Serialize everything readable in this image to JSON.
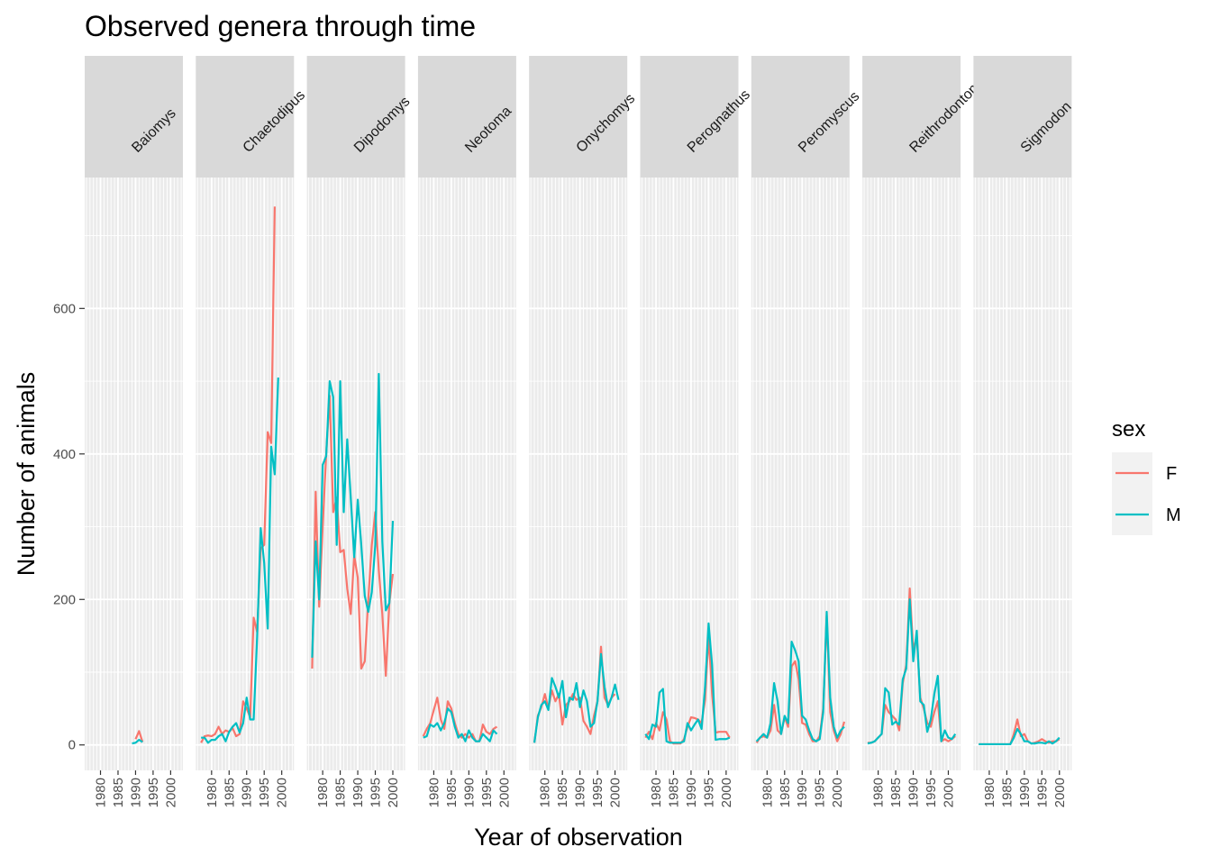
{
  "chart_data": {
    "type": "line",
    "title": "Observed genera through time",
    "xlabel": "Year of observation",
    "ylabel": "Number of animals",
    "ylim": [
      -35,
      780
    ],
    "xlim": [
      1975.5,
      2003.5
    ],
    "yticks": [
      0,
      200,
      400,
      600
    ],
    "xticks": [
      1980,
      1985,
      1990,
      1995,
      2000
    ],
    "grid": true,
    "facet_by": "genus",
    "legend": {
      "title": "sex",
      "placement": "right",
      "entries": [
        {
          "label": "F",
          "color": "#F8766D"
        },
        {
          "label": "M",
          "color": "#00BFC4"
        }
      ]
    },
    "colors": {
      "F": "#F8766D",
      "M": "#00BFC4"
    },
    "x": [
      1977,
      1978,
      1979,
      1980,
      1981,
      1982,
      1983,
      1984,
      1985,
      1986,
      1987,
      1988,
      1989,
      1990,
      1991,
      1992,
      1993,
      1994,
      1995,
      1996,
      1997,
      1998,
      1999,
      2000,
      2001,
      2002
    ],
    "panels": [
      {
        "genus": "Baiomys",
        "series": [
          {
            "name": "F",
            "x": [
              1990,
              1991,
              1992
            ],
            "values": [
              8,
              19,
              4
            ]
          },
          {
            "name": "M",
            "x": [
              1989,
              1990,
              1991,
              1992
            ],
            "values": [
              2,
              3,
              7,
              4
            ]
          }
        ]
      },
      {
        "genus": "Chaetodipus",
        "series": [
          {
            "name": "F",
            "values": [
              3,
              12,
              13,
              12,
              15,
              25,
              15,
              20,
              18,
              23,
              12,
              15,
              60,
              50,
              38,
              175,
              155,
              270,
              275,
              430,
              415,
              740
            ]
          },
          {
            "name": "M",
            "values": [
              10,
              10,
              3,
              7,
              7,
              12,
              15,
              5,
              18,
              25,
              30,
              17,
              30,
              65,
              35,
              35,
              150,
              298,
              250,
              160,
              410,
              372,
              505
            ],
            "x": [
              1977,
              1978,
              1979,
              1980,
              1981,
              1982,
              1983,
              1984,
              1985,
              1986,
              1987,
              1988,
              1989,
              1990,
              1991,
              1992,
              1993,
              1994,
              1995,
              1996,
              1997,
              1998,
              1999
            ]
          }
        ]
      },
      {
        "genus": "Dipodomys",
        "series": [
          {
            "name": "F",
            "values": [
              105,
              348,
              190,
              300,
              400,
              480,
              320,
              340,
              265,
              268,
              215,
              180,
              260,
              230,
              105,
              115,
              200,
              275,
              320,
              240,
              180,
              95,
              195,
              235
            ]
          },
          {
            "name": "M",
            "values": [
              120,
              280,
              200,
              385,
              397,
              500,
              478,
              275,
              500,
              320,
              420,
              340,
              258,
              337,
              275,
              205,
              183,
              210,
              275,
              510,
              280,
              185,
              195,
              308
            ]
          }
        ]
      },
      {
        "genus": "Neotoma",
        "series": [
          {
            "name": "F",
            "values": [
              12,
              22,
              30,
              48,
              65,
              35,
              22,
              60,
              50,
              30,
              15,
              10,
              15,
              10,
              15,
              5,
              5,
              28,
              18,
              15,
              22,
              25
            ]
          },
          {
            "name": "M",
            "values": [
              10,
              12,
              28,
              25,
              30,
              20,
              30,
              50,
              45,
              25,
              10,
              15,
              5,
              20,
              10,
              5,
              5,
              15,
              10,
              5,
              20,
              15
            ]
          }
        ]
      },
      {
        "genus": "Onychomys",
        "series": [
          {
            "name": "F",
            "values": [
              3,
              40,
              52,
              70,
              50,
              75,
              60,
              70,
              28,
              55,
              60,
              70,
              62,
              65,
              33,
              25,
              15,
              40,
              60,
              135,
              65,
              55,
              65,
              70
            ]
          },
          {
            "name": "M",
            "values": [
              3,
              38,
              55,
              60,
              48,
              92,
              80,
              65,
              88,
              38,
              65,
              62,
              85,
              52,
              75,
              60,
              25,
              30,
              60,
              125,
              80,
              52,
              65,
              83,
              62
            ]
          }
        ]
      },
      {
        "genus": "Perognathus",
        "series": [
          {
            "name": "F",
            "values": [
              10,
              18,
              8,
              30,
              20,
              45,
              35,
              5,
              2,
              2,
              2,
              8,
              25,
              38,
              37,
              35,
              30,
              62,
              150,
              70,
              17,
              18,
              18,
              18,
              10
            ]
          },
          {
            "name": "M",
            "values": [
              15,
              8,
              28,
              25,
              72,
              77,
              5,
              3,
              3,
              3,
              3,
              5,
              30,
              20,
              28,
              35,
              22,
              80,
              167,
              110,
              7,
              8,
              8,
              8,
              10
            ]
          }
        ]
      },
      {
        "genus": "Peromyscus",
        "series": [
          {
            "name": "F",
            "values": [
              3,
              10,
              12,
              10,
              20,
              55,
              20,
              15,
              38,
              25,
              108,
              115,
              90,
              30,
              28,
              15,
              5,
              5,
              12,
              50,
              178,
              45,
              20,
              5,
              15,
              32
            ]
          },
          {
            "name": "M",
            "values": [
              5,
              10,
              15,
              10,
              30,
              85,
              60,
              15,
              40,
              30,
              142,
              130,
              115,
              40,
              35,
              20,
              8,
              5,
              8,
              45,
              183,
              65,
              25,
              10,
              20,
              25
            ]
          }
        ]
      },
      {
        "genus": "Reithrodontomys",
        "series": [
          {
            "name": "F",
            "values": [
              3,
              3,
              5,
              10,
              15,
              55,
              45,
              40,
              35,
              20,
              85,
              110,
              215,
              130,
              150,
              65,
              50,
              30,
              25,
              45,
              60,
              5,
              8,
              5,
              8,
              12
            ]
          },
          {
            "name": "M",
            "values": [
              2,
              3,
              5,
              10,
              15,
              78,
              72,
              28,
              32,
              28,
              90,
              105,
              200,
              115,
              157,
              60,
              55,
              18,
              35,
              70,
              95,
              5,
              20,
              10,
              8,
              15
            ]
          }
        ]
      },
      {
        "genus": "Sigmodon",
        "series": [
          {
            "name": "F",
            "values": [
              1,
              1,
              1,
              1,
              1,
              1,
              1,
              1,
              1,
              1,
              15,
              35,
              12,
              15,
              5,
              2,
              3,
              5,
              8,
              5,
              3,
              5,
              5,
              8
            ]
          },
          {
            "name": "M",
            "values": [
              1,
              1,
              1,
              1,
              1,
              1,
              1,
              1,
              1,
              1,
              10,
              22,
              15,
              5,
              5,
              2,
              2,
              3,
              3,
              2,
              5,
              2,
              5,
              10
            ]
          }
        ]
      }
    ]
  }
}
